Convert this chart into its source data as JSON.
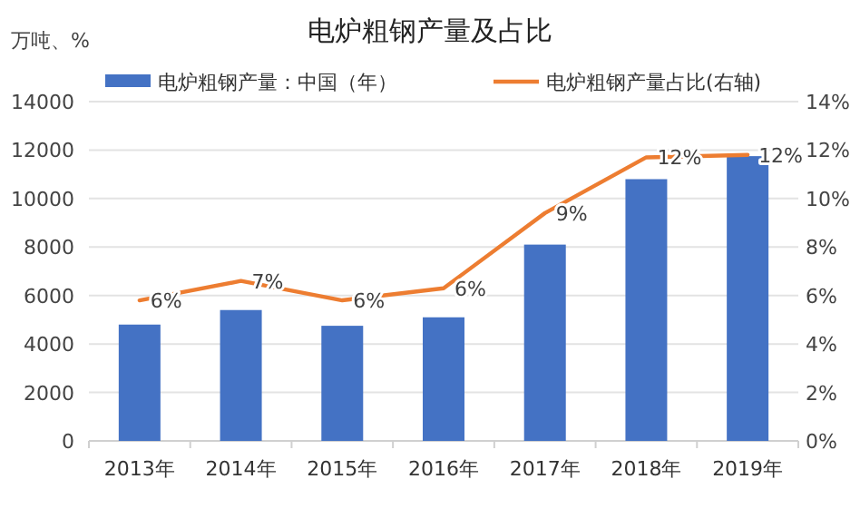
{
  "chart_data": {
    "type": "bar",
    "title": "电炉粗钢产量及占比",
    "ylabel": "万吨、%",
    "categories": [
      "2013年",
      "2014年",
      "2015年",
      "2016年",
      "2017年",
      "2018年",
      "2019年"
    ],
    "series": [
      {
        "name": "电炉粗钢产量：中国（年）",
        "color": "#4472c4",
        "values": [
          4800,
          5400,
          4750,
          5100,
          8100,
          10800,
          11750
        ]
      },
      {
        "name": "电炉粗钢产量占比(右轴)",
        "type": "line",
        "axis": "y2",
        "color": "#ed7d31",
        "values": [
          5.8,
          6.6,
          5.8,
          6.3,
          9.4,
          11.7,
          11.8
        ],
        "value_labels": [
          "6%",
          "7%",
          "6%",
          "6%",
          "9%",
          "12%",
          "12%"
        ]
      }
    ],
    "ylim": [
      0,
      14000
    ],
    "yticks": [
      0,
      2000,
      4000,
      6000,
      8000,
      10000,
      12000,
      14000
    ],
    "y2lim": [
      0,
      14
    ],
    "y2ticks": [
      {
        "value": 0,
        "label": "0%"
      },
      {
        "value": 2,
        "label": "2%"
      },
      {
        "value": 4,
        "label": "4%"
      },
      {
        "value": 6,
        "label": "6%"
      },
      {
        "value": 8,
        "label": "8%"
      },
      {
        "value": 10,
        "label": "10%"
      },
      {
        "value": 12,
        "label": "12%"
      },
      {
        "value": 14,
        "label": "14%"
      }
    ],
    "grid": "y",
    "legend": "top"
  }
}
